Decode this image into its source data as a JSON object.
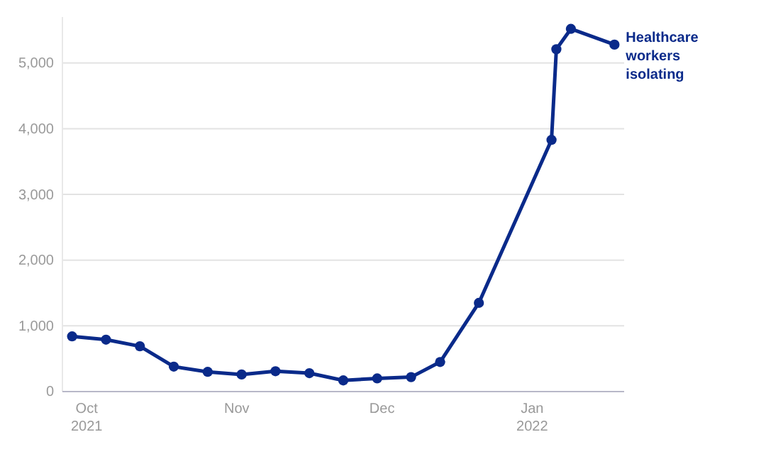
{
  "chart_data": {
    "type": "line",
    "x": [
      "2021-09-28",
      "2021-10-05",
      "2021-10-12",
      "2021-10-19",
      "2021-10-26",
      "2021-11-02",
      "2021-11-09",
      "2021-11-16",
      "2021-11-23",
      "2021-11-30",
      "2021-12-07",
      "2021-12-13",
      "2021-12-21",
      "2022-01-05",
      "2022-01-06",
      "2022-01-09",
      "2022-01-18"
    ],
    "series": [
      {
        "color": "#0a2a8a",
        "values": [
          840,
          790,
          690,
          380,
          300,
          260,
          310,
          280,
          170,
          200,
          220,
          450,
          1350,
          3830,
          5210,
          5520,
          5280
        ]
      }
    ],
    "xlim": [
      "2021-09-26",
      "2022-01-20"
    ],
    "xticks": [
      {
        "value": "2021-10-01",
        "label": "Oct 2021"
      },
      {
        "value": "2021-11-01",
        "label": "Nov"
      },
      {
        "value": "2021-12-01",
        "label": "Dec"
      },
      {
        "value": "2022-01-01",
        "label": "Jan 2022"
      }
    ],
    "ylim": [
      0,
      5700
    ],
    "yticks": [
      0,
      {
        "value": 1000,
        "label": "1,000"
      },
      {
        "value": 2000,
        "label": "2,000"
      },
      {
        "value": 3000,
        "label": "3,000"
      },
      {
        "value": 4000,
        "label": "4,000"
      },
      {
        "value": 5000,
        "label": "5,000"
      }
    ],
    "grid": "y",
    "marker": "circle",
    "line_style": "solid",
    "annotations": [
      {
        "text": "Healthcare workers isolating",
        "x": "2022-01-18",
        "y": 5280
      }
    ]
  }
}
